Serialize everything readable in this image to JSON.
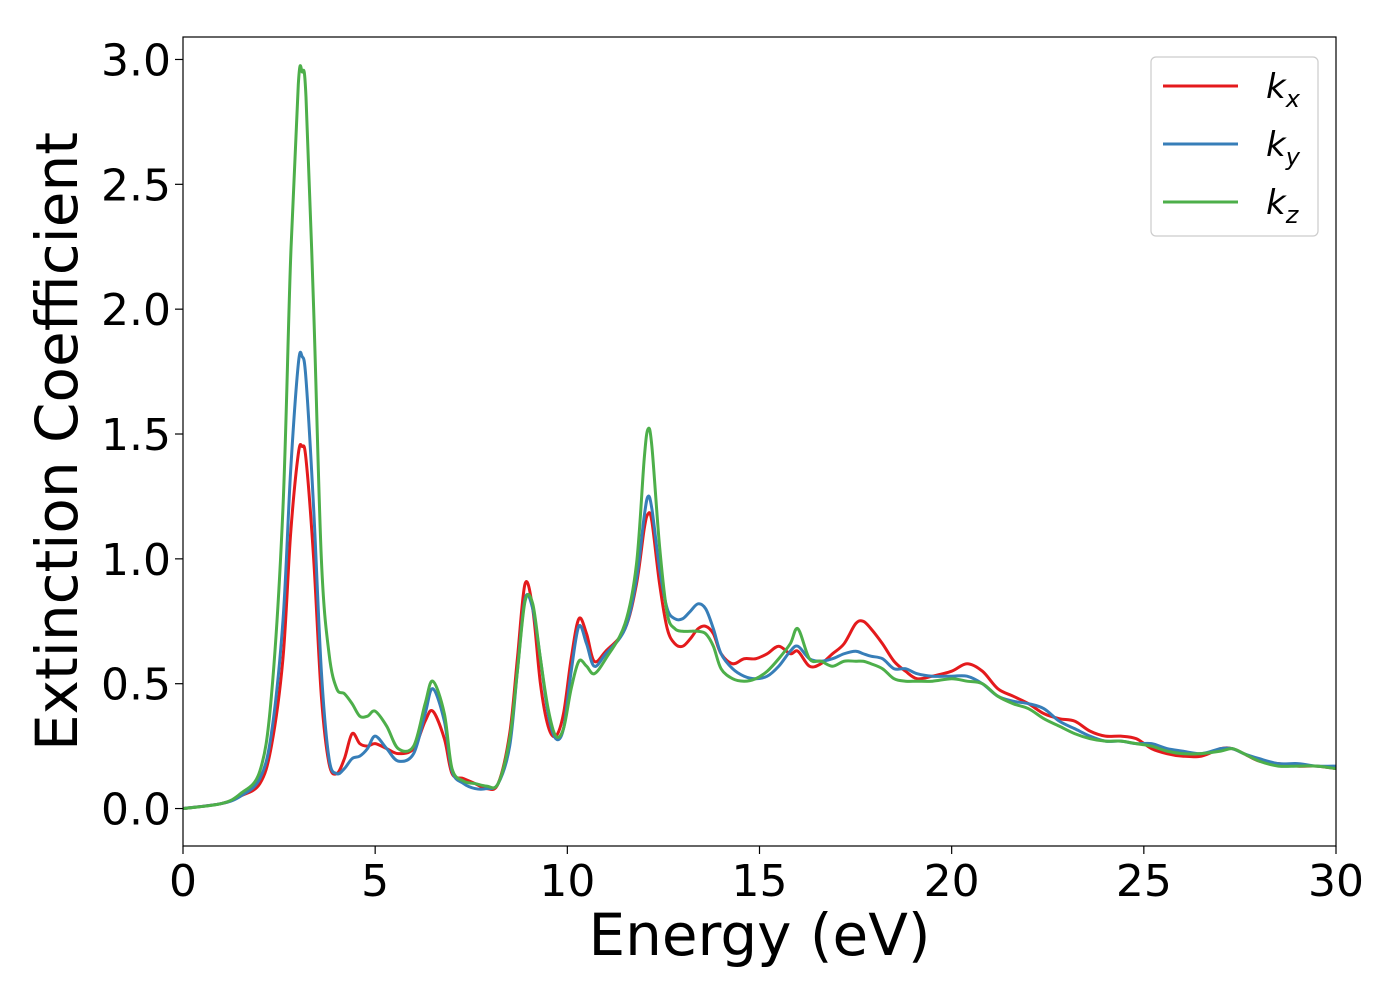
{
  "chart_data": {
    "type": "line",
    "title": "",
    "xlabel": "Energy (eV)",
    "ylabel": "Extinction Coefficient",
    "xlim": [
      0,
      30
    ],
    "ylim": [
      -0.15,
      3.09
    ],
    "xticks": [
      0,
      5,
      10,
      15,
      20,
      25,
      30
    ],
    "yticks": [
      0.0,
      0.5,
      1.0,
      1.5,
      2.0,
      2.5,
      3.0
    ],
    "xtick_labels": [
      "0",
      "5",
      "10",
      "15",
      "20",
      "25",
      "30"
    ],
    "ytick_labels": [
      "0.0",
      "0.5",
      "1.0",
      "1.5",
      "2.0",
      "2.5",
      "3.0"
    ],
    "grid": false,
    "legend": "top-right",
    "series": [
      {
        "name": "k_x",
        "base": "k",
        "sub": "x",
        "color": "#e41a1c",
        "x": [
          0,
          1,
          1.5,
          2,
          2.3,
          2.6,
          2.8,
          3.0,
          3.1,
          3.2,
          3.4,
          3.6,
          3.8,
          4.0,
          4.2,
          4.4,
          4.6,
          4.8,
          5.0,
          5.3,
          5.6,
          6.0,
          6.3,
          6.5,
          6.8,
          7.0,
          7.3,
          7.6,
          7.9,
          8.2,
          8.5,
          8.7,
          8.9,
          9.1,
          9.3,
          9.5,
          9.7,
          9.9,
          10.1,
          10.3,
          10.5,
          10.7,
          11.0,
          11.5,
          11.8,
          12.0,
          12.1,
          12.2,
          12.4,
          12.6,
          12.8,
          13.0,
          13.2,
          13.4,
          13.6,
          13.8,
          14.0,
          14.3,
          14.6,
          14.9,
          15.2,
          15.5,
          15.8,
          16.0,
          16.3,
          16.6,
          16.9,
          17.2,
          17.5,
          17.7,
          17.9,
          18.2,
          18.5,
          18.8,
          19.1,
          19.5,
          20.0,
          20.4,
          20.8,
          21.2,
          21.6,
          22.0,
          22.4,
          22.8,
          23.2,
          23.6,
          24.0,
          24.4,
          24.8,
          25.2,
          25.6,
          26.0,
          26.5,
          27.0,
          27.3,
          27.6,
          28.0,
          28.5,
          29.0,
          29.5,
          30.0
        ],
        "y": [
          0,
          0.02,
          0.05,
          0.1,
          0.25,
          0.6,
          1.1,
          1.42,
          1.45,
          1.4,
          1.0,
          0.45,
          0.18,
          0.14,
          0.2,
          0.3,
          0.26,
          0.25,
          0.26,
          0.24,
          0.22,
          0.24,
          0.35,
          0.39,
          0.28,
          0.14,
          0.12,
          0.1,
          0.08,
          0.1,
          0.3,
          0.6,
          0.9,
          0.8,
          0.5,
          0.33,
          0.29,
          0.38,
          0.6,
          0.76,
          0.7,
          0.59,
          0.63,
          0.72,
          0.9,
          1.12,
          1.18,
          1.15,
          0.9,
          0.72,
          0.66,
          0.65,
          0.68,
          0.72,
          0.73,
          0.7,
          0.62,
          0.58,
          0.6,
          0.6,
          0.62,
          0.65,
          0.62,
          0.63,
          0.57,
          0.58,
          0.62,
          0.66,
          0.74,
          0.75,
          0.72,
          0.66,
          0.59,
          0.55,
          0.52,
          0.53,
          0.55,
          0.58,
          0.55,
          0.48,
          0.45,
          0.42,
          0.38,
          0.36,
          0.35,
          0.31,
          0.29,
          0.29,
          0.28,
          0.24,
          0.22,
          0.21,
          0.21,
          0.24,
          0.24,
          0.22,
          0.19,
          0.18,
          0.17,
          0.17,
          0.16
        ]
      },
      {
        "name": "k_y",
        "base": "k",
        "sub": "y",
        "color": "#377eb8",
        "x": [
          0,
          1,
          1.5,
          2,
          2.3,
          2.6,
          2.8,
          3.0,
          3.1,
          3.2,
          3.4,
          3.6,
          3.8,
          4.0,
          4.2,
          4.4,
          4.6,
          4.8,
          5.0,
          5.3,
          5.6,
          6.0,
          6.3,
          6.5,
          6.8,
          7.0,
          7.3,
          7.6,
          7.9,
          8.2,
          8.5,
          8.7,
          8.9,
          9.1,
          9.3,
          9.5,
          9.7,
          9.9,
          10.1,
          10.3,
          10.5,
          10.7,
          11.0,
          11.5,
          11.8,
          12.0,
          12.1,
          12.2,
          12.4,
          12.6,
          12.8,
          13.0,
          13.2,
          13.4,
          13.6,
          13.8,
          14.0,
          14.3,
          14.6,
          14.9,
          15.2,
          15.5,
          15.8,
          16.0,
          16.3,
          16.6,
          16.9,
          17.2,
          17.5,
          17.7,
          17.9,
          18.2,
          18.5,
          18.8,
          19.1,
          19.5,
          20.0,
          20.4,
          20.8,
          21.2,
          21.6,
          22.0,
          22.4,
          22.8,
          23.2,
          23.6,
          24.0,
          24.4,
          24.8,
          25.2,
          25.6,
          26.0,
          26.5,
          27.0,
          27.3,
          27.6,
          28.0,
          28.5,
          29.0,
          29.5,
          30.0
        ],
        "y": [
          0,
          0.02,
          0.05,
          0.12,
          0.3,
          0.75,
          1.35,
          1.78,
          1.81,
          1.72,
          1.2,
          0.55,
          0.2,
          0.14,
          0.16,
          0.2,
          0.21,
          0.24,
          0.29,
          0.24,
          0.19,
          0.22,
          0.38,
          0.48,
          0.35,
          0.15,
          0.1,
          0.08,
          0.08,
          0.1,
          0.25,
          0.55,
          0.84,
          0.8,
          0.6,
          0.38,
          0.28,
          0.32,
          0.55,
          0.73,
          0.66,
          0.57,
          0.62,
          0.72,
          0.92,
          1.17,
          1.25,
          1.2,
          0.96,
          0.8,
          0.76,
          0.76,
          0.79,
          0.82,
          0.8,
          0.72,
          0.62,
          0.56,
          0.53,
          0.52,
          0.53,
          0.57,
          0.63,
          0.65,
          0.6,
          0.59,
          0.6,
          0.62,
          0.63,
          0.62,
          0.61,
          0.6,
          0.56,
          0.56,
          0.54,
          0.53,
          0.53,
          0.53,
          0.5,
          0.45,
          0.43,
          0.42,
          0.4,
          0.35,
          0.32,
          0.29,
          0.27,
          0.27,
          0.26,
          0.26,
          0.24,
          0.23,
          0.22,
          0.24,
          0.24,
          0.22,
          0.2,
          0.18,
          0.18,
          0.17,
          0.17
        ]
      },
      {
        "name": "k_z",
        "base": "k",
        "sub": "z",
        "color": "#4daf4a",
        "x": [
          0,
          1,
          1.5,
          2,
          2.3,
          2.6,
          2.8,
          3.0,
          3.1,
          3.2,
          3.4,
          3.6,
          3.8,
          4.0,
          4.2,
          4.4,
          4.6,
          4.8,
          5.0,
          5.3,
          5.6,
          6.0,
          6.3,
          6.5,
          6.8,
          7.0,
          7.3,
          7.6,
          7.9,
          8.2,
          8.5,
          8.7,
          8.9,
          9.1,
          9.3,
          9.5,
          9.7,
          9.9,
          10.1,
          10.3,
          10.5,
          10.7,
          11.0,
          11.5,
          11.8,
          12.0,
          12.1,
          12.2,
          12.4,
          12.6,
          12.8,
          13.0,
          13.2,
          13.4,
          13.6,
          13.8,
          14.0,
          14.3,
          14.6,
          14.9,
          15.2,
          15.5,
          15.8,
          16.0,
          16.3,
          16.6,
          16.9,
          17.2,
          17.5,
          17.7,
          17.9,
          18.2,
          18.5,
          18.8,
          19.1,
          19.5,
          20.0,
          20.4,
          20.8,
          21.2,
          21.6,
          22.0,
          22.4,
          22.8,
          23.2,
          23.6,
          24.0,
          24.4,
          24.8,
          25.2,
          25.6,
          26.0,
          26.5,
          27.0,
          27.3,
          27.6,
          28.0,
          28.5,
          29.0,
          29.5,
          30.0
        ],
        "y": [
          0,
          0.02,
          0.06,
          0.15,
          0.45,
          1.2,
          2.2,
          2.9,
          2.95,
          2.85,
          2.0,
          1.0,
          0.62,
          0.48,
          0.46,
          0.42,
          0.37,
          0.37,
          0.39,
          0.33,
          0.24,
          0.25,
          0.42,
          0.51,
          0.38,
          0.16,
          0.11,
          0.1,
          0.09,
          0.1,
          0.28,
          0.55,
          0.83,
          0.82,
          0.6,
          0.4,
          0.29,
          0.32,
          0.48,
          0.59,
          0.57,
          0.54,
          0.6,
          0.74,
          0.98,
          1.4,
          1.52,
          1.45,
          1.05,
          0.78,
          0.72,
          0.71,
          0.71,
          0.71,
          0.7,
          0.65,
          0.56,
          0.52,
          0.51,
          0.52,
          0.55,
          0.6,
          0.66,
          0.72,
          0.6,
          0.59,
          0.57,
          0.59,
          0.59,
          0.59,
          0.58,
          0.56,
          0.52,
          0.51,
          0.51,
          0.51,
          0.52,
          0.51,
          0.5,
          0.45,
          0.42,
          0.4,
          0.36,
          0.33,
          0.3,
          0.28,
          0.27,
          0.27,
          0.26,
          0.25,
          0.23,
          0.22,
          0.22,
          0.23,
          0.24,
          0.22,
          0.19,
          0.17,
          0.17,
          0.17,
          0.16
        ]
      }
    ]
  }
}
